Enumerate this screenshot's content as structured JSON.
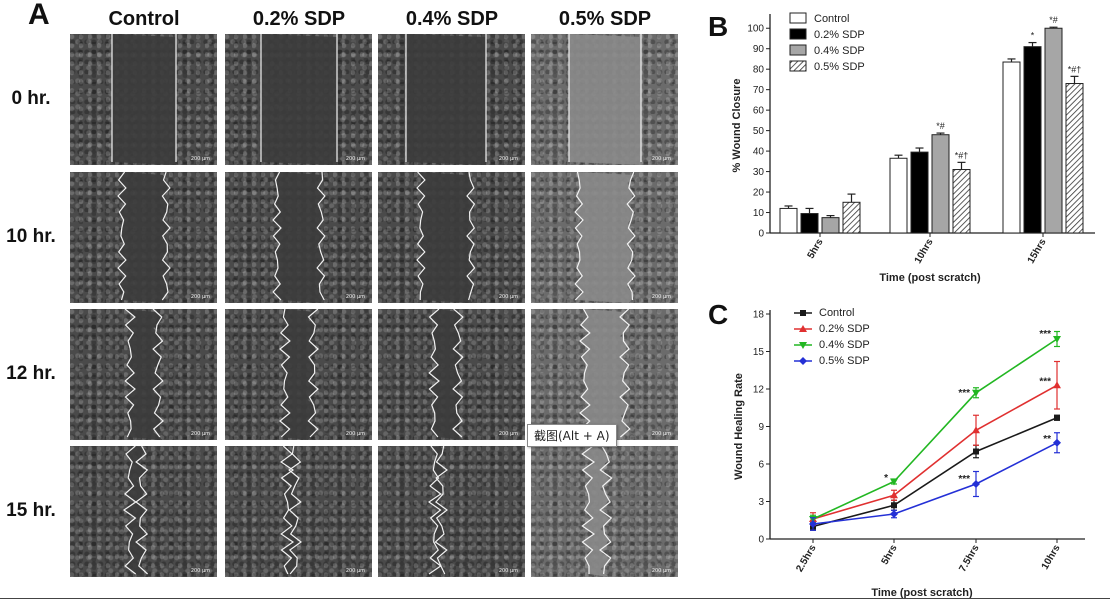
{
  "panelA": {
    "letter": "A",
    "columns": [
      "Control",
      "0.2% SDP",
      "0.4% SDP",
      "0.5% SDP"
    ],
    "rows": [
      "0 hr.",
      "10 hr.",
      "12 hr.",
      "15 hr."
    ],
    "scale_label": "200 µm"
  },
  "tooltip": {
    "text": "截图(Alt + A)"
  },
  "chart_data": [
    {
      "id": "B",
      "letter": "B",
      "type": "bar",
      "categories": [
        "5hrs",
        "10hrs",
        "15hrs"
      ],
      "series": [
        {
          "name": "Control",
          "values": [
            12,
            36.5,
            83.5
          ],
          "errors": [
            1.2,
            1.5,
            1.5
          ],
          "fill": "#ffffff",
          "pattern": "none"
        },
        {
          "name": "0.2% SDP",
          "values": [
            9.5,
            39.5,
            91
          ],
          "errors": [
            2.5,
            2.0,
            2.0
          ],
          "fill": "#000000",
          "pattern": "none"
        },
        {
          "name": "0.4% SDP",
          "values": [
            7.5,
            48,
            100
          ],
          "errors": [
            1.0,
            0.8,
            0.5
          ],
          "fill": "#a6a6a6",
          "pattern": "none"
        },
        {
          "name": "0.5% SDP",
          "values": [
            15,
            31,
            73
          ],
          "errors": [
            4.0,
            3.5,
            3.5
          ],
          "fill": "#ffffff",
          "pattern": "hatch"
        }
      ],
      "annotations": [
        {
          "category": 1,
          "series": 2,
          "text": "*#"
        },
        {
          "category": 1,
          "series": 3,
          "text": "*#†"
        },
        {
          "category": 2,
          "series": 1,
          "text": "*"
        },
        {
          "category": 2,
          "series": 2,
          "text": "*#"
        },
        {
          "category": 2,
          "series": 3,
          "text": "*#†"
        }
      ],
      "xlabel": "Time (post scratch)",
      "ylabel": "% Wound Closure",
      "ylim": [
        0,
        105
      ],
      "yticks": [
        0,
        10,
        20,
        30,
        40,
        50,
        60,
        70,
        80,
        90,
        100
      ],
      "legend_position": "top-left"
    },
    {
      "id": "C",
      "letter": "C",
      "type": "line",
      "categories": [
        "2.5hrs",
        "5hrs",
        "7.5hrs",
        "10hrs"
      ],
      "series": [
        {
          "name": "Control",
          "values": [
            1.0,
            2.7,
            7.0,
            9.7
          ],
          "errors": [
            0.3,
            0.4,
            0.5,
            0.2
          ],
          "color": "#1a1a1a",
          "marker": "square"
        },
        {
          "name": "0.2% SDP",
          "values": [
            1.6,
            3.5,
            8.7,
            12.3
          ],
          "errors": [
            0.5,
            0.4,
            1.2,
            1.9
          ],
          "color": "#e03030",
          "marker": "triangle"
        },
        {
          "name": "0.4% SDP",
          "values": [
            1.6,
            4.6,
            11.7,
            16.0
          ],
          "errors": [
            0.3,
            0.2,
            0.4,
            0.6
          ],
          "color": "#22b722",
          "marker": "triangle-down"
        },
        {
          "name": "0.5% SDP",
          "values": [
            1.2,
            2.0,
            4.4,
            7.7
          ],
          "errors": [
            0.5,
            0.3,
            1.0,
            0.8
          ],
          "color": "#2430d6",
          "marker": "diamond"
        }
      ],
      "annotations": [
        {
          "category": 1,
          "value": 4.9,
          "text": "*"
        },
        {
          "category": 2,
          "value": 11.7,
          "text": "***"
        },
        {
          "category": 2,
          "value": 4.8,
          "text": "***"
        },
        {
          "category": 3,
          "value": 16.4,
          "text": "***"
        },
        {
          "category": 3,
          "value": 12.6,
          "text": "***"
        },
        {
          "category": 3,
          "value": 8.0,
          "text": "**"
        }
      ],
      "xlabel": "Time (post scratch)",
      "ylabel": "Wound Healing Rate",
      "ylim": [
        0,
        18
      ],
      "yticks": [
        0,
        3,
        6,
        9,
        12,
        15,
        18
      ],
      "legend_position": "top-left"
    }
  ]
}
